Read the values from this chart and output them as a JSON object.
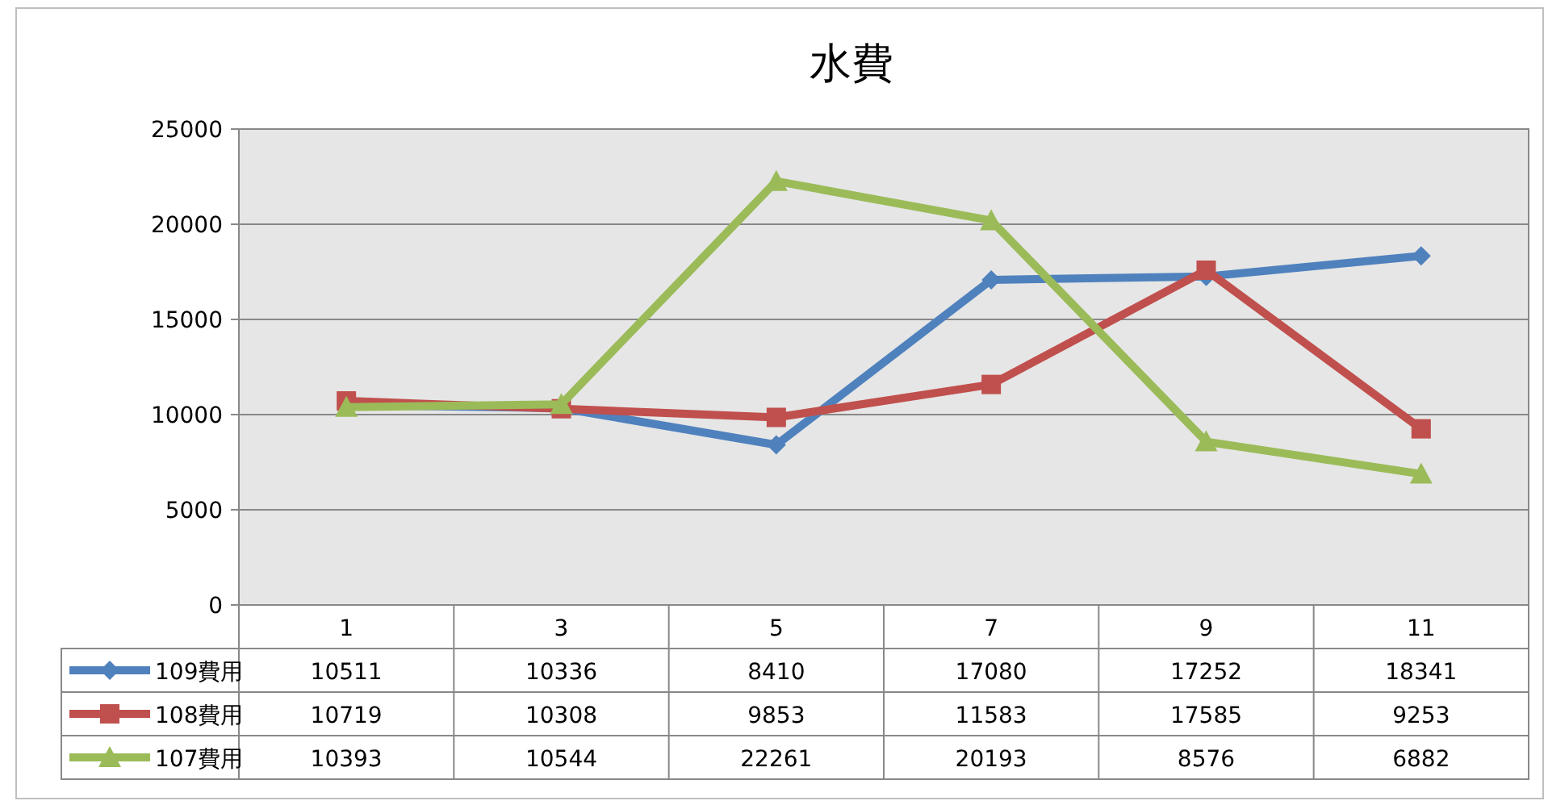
{
  "chart_data": {
    "type": "line",
    "title": "水費",
    "categories": [
      "1",
      "3",
      "5",
      "7",
      "9",
      "11"
    ],
    "series": [
      {
        "name": "109費用",
        "color": "#4f81bd",
        "marker": "diamond",
        "values": [
          10511,
          10336,
          8410,
          17080,
          17252,
          18341
        ]
      },
      {
        "name": "108費用",
        "color": "#c0504d",
        "marker": "square",
        "values": [
          10719,
          10308,
          9853,
          11583,
          17585,
          9253
        ]
      },
      {
        "name": "107費用",
        "color": "#9bbb59",
        "marker": "triangle",
        "values": [
          10393,
          10544,
          22261,
          20193,
          8576,
          6882
        ]
      }
    ],
    "ylim": [
      0,
      25000
    ],
    "yticks": [
      0,
      5000,
      10000,
      15000,
      20000,
      25000
    ],
    "grid": "y",
    "legend": "bottom",
    "data_labels": true,
    "line_style": "solid"
  }
}
